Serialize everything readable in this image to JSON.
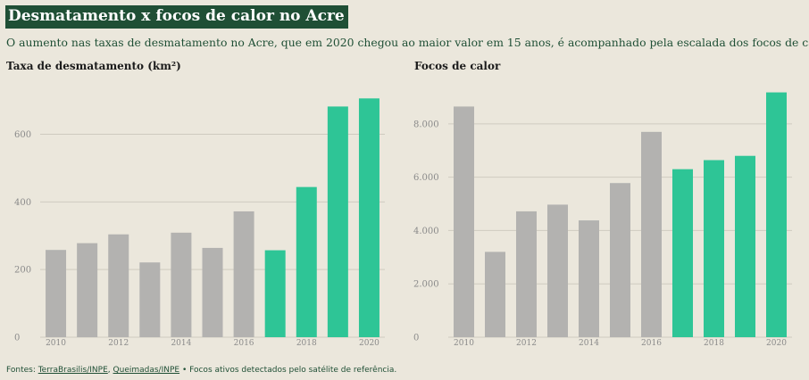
{
  "header": {
    "title": "Desmatamento x focos de calor no Acre",
    "subtitle": "O aumento nas taxas de desmatamento no Acre, que em 2020 chegou ao maior valor em 15 anos, é acompanhado pela escalada dos focos de calor."
  },
  "colors": {
    "gray_bar": "#b3b2b0",
    "green_bar": "#2ec596",
    "grid": "#cfcbc0",
    "axis_text": "#8a8a8a",
    "title_bg": "#1f4f35",
    "background": "#ebe7dc"
  },
  "footer": {
    "prefix": "Fontes: ",
    "source1": "TerraBrasilis/INPE",
    "sep": ", ",
    "source2": "Queimadas/INPE",
    "suffix": " • Focos ativos detectados pelo satélite de referência."
  },
  "chart_data": [
    {
      "type": "bar",
      "title": "Taxa de desmatamento (km²)",
      "x": [
        2010,
        2011,
        2012,
        2013,
        2014,
        2015,
        2016,
        2017,
        2018,
        2019,
        2020
      ],
      "values": [
        258,
        278,
        304,
        221,
        309,
        264,
        372,
        257,
        444,
        682,
        706
      ],
      "highlight_from": 2017,
      "ylim": [
        0,
        720
      ],
      "yticks": [
        0,
        200,
        400,
        600
      ],
      "ytick_labels": [
        "0",
        "200",
        "400",
        "600"
      ],
      "xtick_labels": [
        "2010",
        "2012",
        "2014",
        "2016",
        "2018",
        "2020"
      ],
      "grid": true
    },
    {
      "type": "bar",
      "title": "Focos de calor",
      "x": [
        2010,
        2011,
        2012,
        2013,
        2014,
        2015,
        2016,
        2017,
        2018,
        2019,
        2020
      ],
      "values": [
        8650,
        3200,
        4720,
        4970,
        4380,
        5780,
        7700,
        6300,
        6640,
        6800,
        9180
      ],
      "highlight_from": 2017,
      "ylim": [
        0,
        9400
      ],
      "yticks": [
        0,
        2000,
        4000,
        6000,
        8000
      ],
      "ytick_labels": [
        "0",
        "2.000",
        "4.000",
        "6.000",
        "8.000"
      ],
      "xtick_labels": [
        "2010",
        "2012",
        "2014",
        "2016",
        "2018",
        "2020"
      ],
      "grid": true
    }
  ]
}
